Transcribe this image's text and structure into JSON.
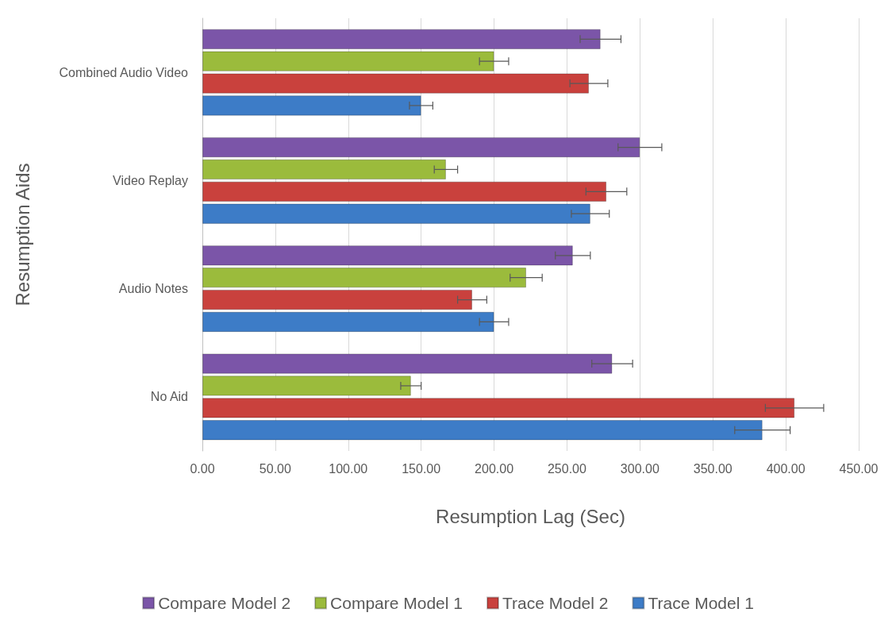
{
  "chart_data": {
    "type": "bar",
    "orientation": "horizontal",
    "xlabel": "Resumption Lag (Sec)",
    "ylabel": "Resumption Aids",
    "categories": [
      "Combined Audio Video",
      "Video Replay",
      "Audio Notes",
      "No Aid"
    ],
    "series": [
      {
        "name": "Compare Model 2",
        "color": "#7b55a8",
        "values": [
          273,
          300,
          254,
          281
        ],
        "errors": [
          14,
          15,
          12,
          14
        ]
      },
      {
        "name": "Compare Model 1",
        "color": "#9bbb3c",
        "values": [
          200,
          167,
          222,
          143
        ],
        "errors": [
          10,
          8,
          11,
          7
        ]
      },
      {
        "name": "Trace Model 2",
        "color": "#c9413d",
        "values": [
          265,
          277,
          185,
          406
        ],
        "errors": [
          13,
          14,
          10,
          20
        ]
      },
      {
        "name": "Trace Model 1",
        "color": "#3d7cc7",
        "values": [
          150,
          266,
          200,
          384
        ],
        "errors": [
          8,
          13,
          10,
          19
        ]
      }
    ],
    "xlim": [
      0,
      450
    ],
    "xticks": [
      {
        "value": 0,
        "label": "0.00"
      },
      {
        "value": 50,
        "label": "50.00"
      },
      {
        "value": 100,
        "label": "100.00"
      },
      {
        "value": 150,
        "label": "150.00"
      },
      {
        "value": 200,
        "label": "200.00"
      },
      {
        "value": 250,
        "label": "250.00"
      },
      {
        "value": 300,
        "label": "300.00"
      },
      {
        "value": 350,
        "label": "350.00"
      },
      {
        "value": 400,
        "label": "400.00"
      },
      {
        "value": 450,
        "label": "450.00"
      }
    ],
    "grid": "x",
    "legend": "bottom"
  }
}
